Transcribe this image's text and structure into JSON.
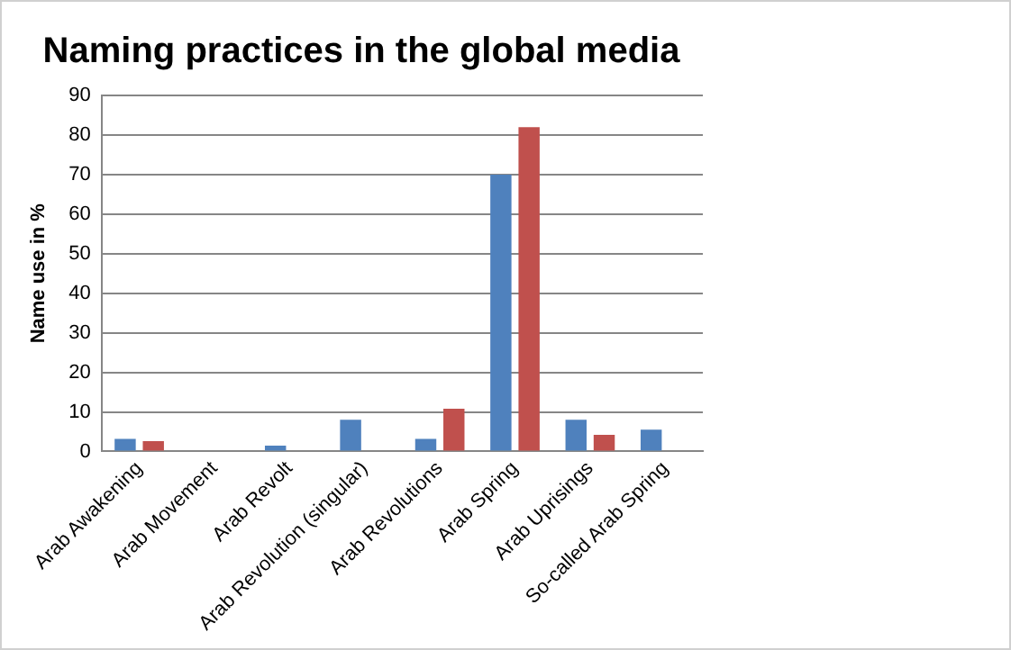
{
  "chart_data": {
    "type": "bar",
    "title": "Naming practices in the global media",
    "ylabel": "Name use in %",
    "categories": [
      "Arab Awakening",
      "Arab Movement",
      "Arab Revolt",
      "Arab Revolution (singular)",
      "Arab Revolutions",
      "Arab Spring",
      "Arab Uprisings",
      "So-called Arab Spring"
    ],
    "series": [
      {
        "color": "#4f81bd",
        "values": [
          3.2,
          0,
          1.5,
          8,
          3.2,
          70,
          8,
          5.5
        ]
      },
      {
        "color": "#c0504d",
        "values": [
          2.6,
          0,
          0,
          0,
          10.8,
          82,
          4.2,
          0
        ]
      }
    ],
    "ylim": [
      0,
      90
    ],
    "yticks": [
      0,
      10,
      20,
      30,
      40,
      50,
      60,
      70,
      80,
      90
    ],
    "grid": "y",
    "legend": false
  }
}
